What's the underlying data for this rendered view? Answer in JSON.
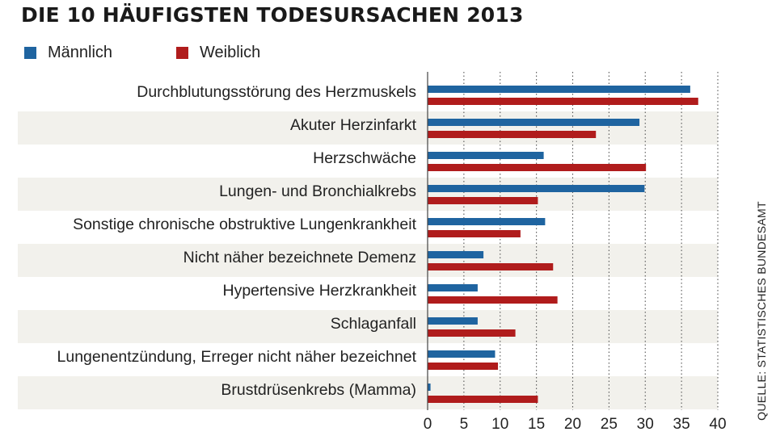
{
  "chart_data": {
    "type": "bar",
    "orientation": "horizontal",
    "title": "DIE 10 HÄUFIGSTEN TODESURSACHEN 2013",
    "source": "QUELLE: STATISTISCHES BUNDESAMT",
    "categories": [
      "Durchblutungsstörung des  Herzmuskels",
      "Akuter Herzinfarkt",
      "Herzschwäche",
      "Lungen- und Bronchialkrebs",
      "Sonstige chronische obstruktive Lungenkrankheit",
      "Nicht näher bezeichnete Demenz",
      "Hypertensive Herzkrankheit",
      "Schlaganfall",
      "Lungenentzündung, Erreger nicht näher bezeichnet",
      "Brustdrüsenkrebs (Mamma)"
    ],
    "series": [
      {
        "name": "Männlich",
        "color": "#1f64a0",
        "values": [
          36.2,
          29.2,
          16.0,
          29.9,
          16.2,
          7.7,
          6.9,
          6.9,
          9.3,
          0.4
        ]
      },
      {
        "name": "Weiblich",
        "color": "#b01c1c",
        "values": [
          37.3,
          23.2,
          30.1,
          15.2,
          12.8,
          17.3,
          17.9,
          12.1,
          9.7,
          15.2
        ]
      }
    ],
    "xlim": [
      0,
      40
    ],
    "xticks": [
      "0",
      "5",
      "10",
      "15",
      "20",
      "25",
      "30",
      "35",
      "40"
    ],
    "grid": true,
    "legend": "top-left"
  }
}
